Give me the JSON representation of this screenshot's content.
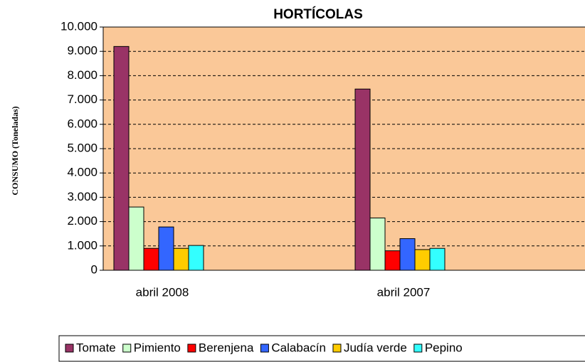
{
  "chart_data": {
    "type": "bar",
    "title": "HORTÍCOLAS",
    "ylabel": "CONSUMO (Toneladas)",
    "categories": [
      "abril 2008",
      "abril 2007"
    ],
    "series": [
      {
        "name": "Tomate",
        "color": "#993366",
        "values": [
          9200,
          7450
        ]
      },
      {
        "name": "Pimiento",
        "color": "#ccffcc",
        "values": [
          2600,
          2150
        ]
      },
      {
        "name": "Berenjena",
        "color": "#ff0000",
        "values": [
          900,
          800
        ]
      },
      {
        "name": "Calabacín",
        "color": "#3366ff",
        "values": [
          1780,
          1300
        ]
      },
      {
        "name": "Judía verde",
        "color": "#ffcc00",
        "values": [
          900,
          850
        ]
      },
      {
        "name": "Pepino",
        "color": "#33ffff",
        "values": [
          1020,
          900
        ]
      }
    ],
    "ylim": [
      0,
      10000
    ],
    "yticks": [
      0,
      {
        "value": 1000,
        "label": "1.000"
      },
      {
        "value": 2000,
        "label": "2.000"
      },
      {
        "value": 3000,
        "label": "3.000"
      },
      {
        "value": 4000,
        "label": "4.000"
      },
      {
        "value": 5000,
        "label": "5.000"
      },
      {
        "value": 6000,
        "label": "6.000"
      },
      {
        "value": 7000,
        "label": "7.000"
      },
      {
        "value": 8000,
        "label": "8.000"
      },
      {
        "value": 9000,
        "label": "9.000"
      },
      {
        "value": 10000,
        "label": "10.000"
      }
    ],
    "grid": true,
    "plot_background": "#fac898",
    "legend": "bottom"
  }
}
